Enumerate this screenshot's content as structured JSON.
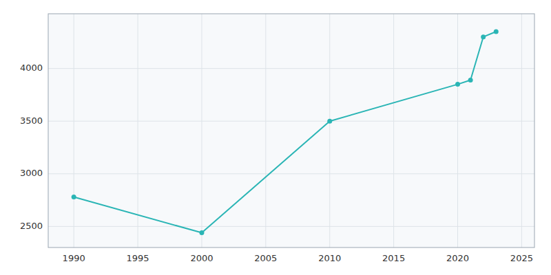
{
  "chart_data": {
    "type": "line",
    "x": [
      1990,
      2000,
      2010,
      2020,
      2021,
      2022,
      2023
    ],
    "values": [
      2780,
      2440,
      3500,
      3850,
      3890,
      4300,
      4350
    ],
    "color": "#2ab5b5",
    "marker": "circle",
    "xlim": [
      1988,
      2026
    ],
    "ylim": [
      2300,
      4520
    ],
    "xticks": [
      1990,
      1995,
      2000,
      2005,
      2010,
      2015,
      2020,
      2025
    ],
    "yticks": [
      2500,
      3000,
      3500,
      4000
    ],
    "grid": true
  }
}
